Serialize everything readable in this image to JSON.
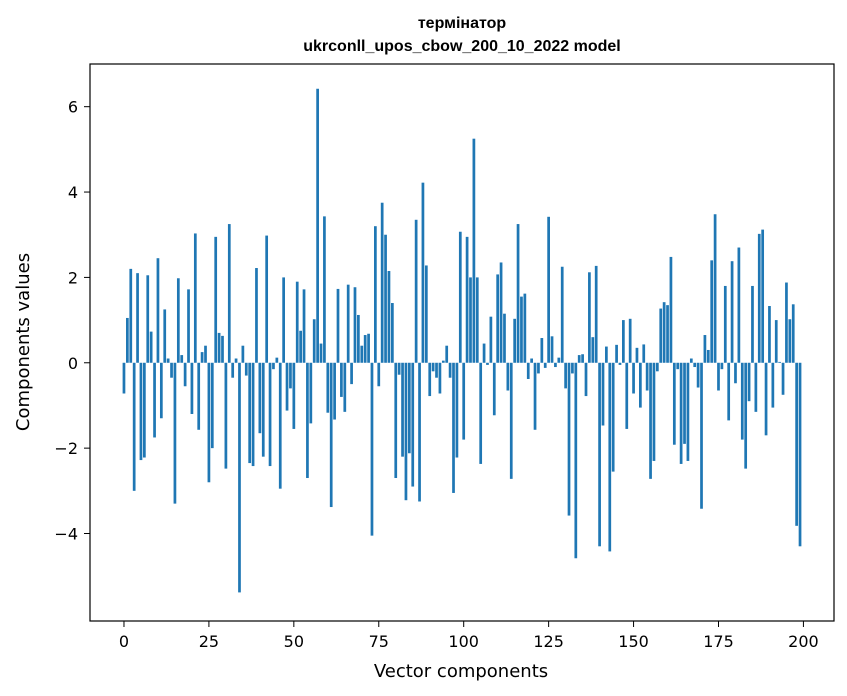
{
  "chart_data": {
    "type": "bar",
    "title": [
      "термінатор",
      "ukrconll_upos_cbow_200_10_2022 model"
    ],
    "xlabel": "Vector components",
    "ylabel": "Components values",
    "xlim": [
      -10,
      209
    ],
    "ylim": [
      -6.05,
      7.0
    ],
    "xticks": [
      0,
      25,
      50,
      75,
      100,
      125,
      150,
      175,
      200
    ],
    "yticks": [
      -4,
      -2,
      0,
      2,
      4,
      6
    ],
    "ytick_labels": [
      "−4",
      "−2",
      "0",
      "2",
      "4",
      "6"
    ],
    "bar_color": "#1f77b4",
    "grid": false,
    "values": [
      -0.72,
      1.05,
      2.2,
      -3.0,
      2.1,
      -2.28,
      -2.22,
      2.05,
      0.73,
      -1.75,
      2.45,
      -1.3,
      1.25,
      0.1,
      -0.35,
      -3.3,
      1.98,
      0.18,
      -0.55,
      1.72,
      -1.2,
      3.03,
      -1.57,
      0.25,
      0.4,
      -2.8,
      -2.0,
      2.95,
      0.7,
      0.63,
      -2.48,
      3.25,
      -0.35,
      0.1,
      -5.38,
      0.4,
      -0.3,
      -2.35,
      -2.42,
      2.22,
      -1.65,
      -2.2,
      2.98,
      -2.42,
      -0.15,
      0.12,
      -2.95,
      2.0,
      -1.12,
      -0.6,
      -1.55,
      1.9,
      0.75,
      1.72,
      -2.7,
      -1.42,
      1.02,
      6.42,
      0.45,
      3.43,
      -1.17,
      -3.38,
      -1.33,
      1.73,
      -0.8,
      -1.15,
      1.83,
      -0.5,
      1.77,
      1.12,
      0.4,
      0.65,
      0.68,
      -4.05,
      3.2,
      -0.55,
      3.75,
      3.0,
      2.15,
      1.4,
      -2.7,
      -0.28,
      -2.2,
      -3.22,
      -2.12,
      -2.9,
      3.35,
      -3.25,
      4.22,
      2.28,
      -0.78,
      -0.2,
      -0.35,
      -0.72,
      0.05,
      0.4,
      -0.35,
      -3.05,
      -2.22,
      3.07,
      -1.8,
      2.95,
      2.0,
      5.25,
      2.0,
      -2.37,
      0.45,
      -0.05,
      1.08,
      -1.23,
      2.07,
      2.35,
      1.15,
      -0.65,
      -2.72,
      1.03,
      3.25,
      1.55,
      1.62,
      -0.38,
      0.1,
      -1.57,
      -0.25,
      0.58,
      -0.12,
      3.42,
      0.62,
      -0.1,
      0.12,
      2.25,
      -0.6,
      -3.58,
      -0.25,
      -4.58,
      0.18,
      0.2,
      -0.78,
      2.12,
      0.6,
      2.27,
      -4.3,
      -1.47,
      0.38,
      -4.42,
      -2.55,
      0.42,
      -0.05,
      1.0,
      -1.55,
      1.03,
      -0.72,
      0.35,
      -1.05,
      0.43,
      -0.65,
      -2.72,
      -2.3,
      -0.2,
      1.27,
      1.42,
      1.35,
      2.48,
      -1.92,
      -0.15,
      -2.37,
      -1.9,
      -2.3,
      0.1,
      -0.1,
      -0.58,
      -3.42,
      0.65,
      0.3,
      2.4,
      3.48,
      -0.65,
      -0.15,
      1.8,
      -1.35,
      2.38,
      -0.48,
      2.7,
      -1.8,
      -2.48,
      -0.9,
      1.8,
      -1.15,
      3.02,
      3.12,
      -1.7,
      1.33,
      -1.05,
      1.0,
      0.02,
      -0.75,
      1.88,
      1.02,
      1.37,
      -3.82,
      -4.3
    ]
  }
}
